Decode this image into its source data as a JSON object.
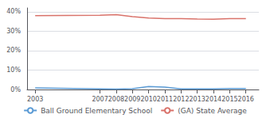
{
  "chart_data": {
    "type": "line",
    "x": [
      2003,
      2007,
      2008,
      2009,
      2010,
      2011,
      2012,
      2013,
      2014,
      2015,
      2016
    ],
    "series": [
      {
        "name": "Ball Ground Elementary School",
        "color": "#5b9bd5",
        "values": [
          0.8,
          0.3,
          0.2,
          0.4,
          1.5,
          1.2,
          0.3,
          0.3,
          0.3,
          0.5,
          0.5
        ]
      },
      {
        "name": "(GA) State Average",
        "color": "#d9726a",
        "values": [
          38.0,
          38.2,
          38.5,
          37.5,
          36.8,
          36.5,
          36.5,
          36.3,
          36.2,
          36.5,
          36.5
        ]
      }
    ],
    "xlim": [
      2002.5,
      2016.8
    ],
    "xticks": [
      2003,
      2007,
      2008,
      2009,
      2010,
      2011,
      2012,
      2013,
      2014,
      2015,
      2016
    ],
    "ylim": [
      0,
      42
    ],
    "yticks": [
      {
        "value": 0,
        "label": "0%"
      },
      {
        "value": 10,
        "label": "10%"
      },
      {
        "value": 20,
        "label": "20%"
      },
      {
        "value": 30,
        "label": "30%"
      },
      {
        "value": 40,
        "label": "40%"
      }
    ],
    "grid": true,
    "legend": "bottom"
  }
}
